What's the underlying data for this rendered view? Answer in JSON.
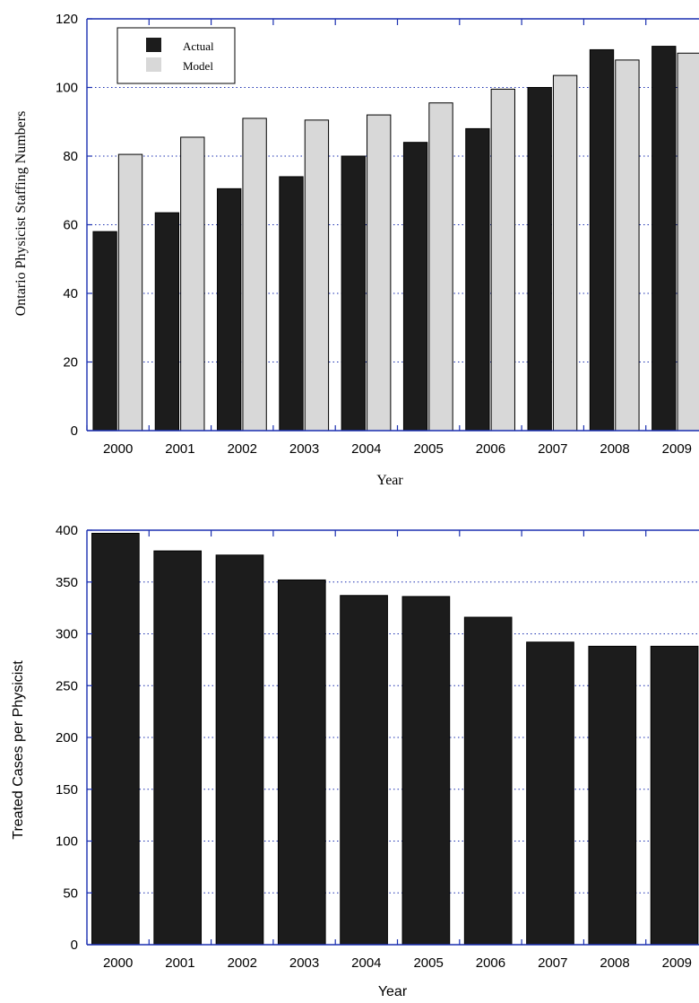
{
  "colors": {
    "actual": "#1c1c1c",
    "model": "#d8d8d8",
    "grid": "#1a2fb0",
    "axis": "#1a2fb0"
  },
  "chart_data": [
    {
      "type": "bar",
      "categories": [
        "2000",
        "2001",
        "2002",
        "2003",
        "2004",
        "2005",
        "2006",
        "2007",
        "2008",
        "2009"
      ],
      "series": [
        {
          "name": "Actual",
          "values": [
            58,
            63.5,
            70.5,
            74,
            80,
            84,
            88,
            100,
            111,
            112
          ]
        },
        {
          "name": "Model",
          "values": [
            80.5,
            85.5,
            91,
            90.5,
            92,
            95.5,
            99.5,
            103.5,
            108,
            110
          ]
        }
      ],
      "ylabel": "Ontario Physicist Staffing Numbers",
      "xlabel": "Year",
      "ylim": [
        0,
        120
      ],
      "yticks": [
        "0",
        "20",
        "40",
        "60",
        "80",
        "100",
        "120"
      ],
      "grid": true,
      "legend": "top-left"
    },
    {
      "type": "bar",
      "categories": [
        "2000",
        "2001",
        "2002",
        "2003",
        "2004",
        "2005",
        "2006",
        "2007",
        "2008",
        "2009"
      ],
      "series": [
        {
          "values": [
            397,
            380,
            376,
            352,
            337,
            336,
            316,
            292,
            288,
            288
          ]
        }
      ],
      "ylabel": "Treated Cases per Physicist",
      "xlabel": "Year",
      "ylim": [
        0,
        400
      ],
      "yticks": [
        "0",
        "50",
        "100",
        "150",
        "200",
        "250",
        "300",
        "350",
        "400"
      ],
      "grid": true
    }
  ]
}
